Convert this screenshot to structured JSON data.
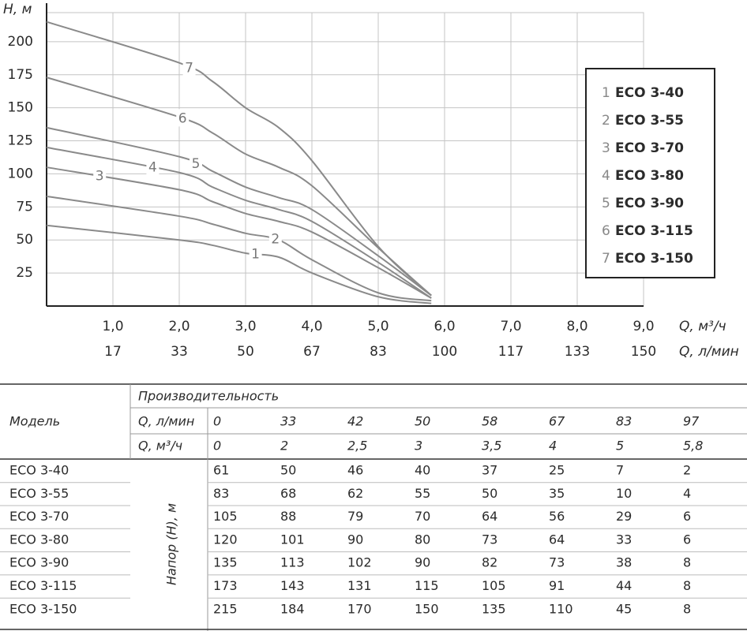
{
  "chart_data": {
    "type": "line",
    "y_label": "H, м",
    "x_label": "Q, м³/ч",
    "x2_label": "Q, л/мин",
    "xlim": [
      0,
      9
    ],
    "ylim": [
      0,
      222
    ],
    "xticks": [
      {
        "value": 1,
        "label": "1,0"
      },
      {
        "value": 2,
        "label": "2,0"
      },
      {
        "value": 3,
        "label": "3,0"
      },
      {
        "value": 4,
        "label": "4,0"
      },
      {
        "value": 5,
        "label": "5,0"
      },
      {
        "value": 6,
        "label": "6,0"
      },
      {
        "value": 7,
        "label": "7,0"
      },
      {
        "value": 8,
        "label": "8,0"
      },
      {
        "value": 9,
        "label": "9,0"
      }
    ],
    "x2ticks": [
      17,
      33,
      50,
      67,
      83,
      100,
      117,
      133,
      150
    ],
    "yticks": [
      25,
      50,
      75,
      100,
      125,
      150,
      175,
      200
    ],
    "grid": true,
    "legend": "right",
    "x": [
      0,
      2,
      2.5,
      3,
      3.5,
      4,
      5,
      5.8
    ],
    "series": [
      {
        "label": "1",
        "name": "ECO 3-40",
        "color": "#8a8a8a",
        "values": [
          61,
          50,
          46,
          40,
          37,
          25,
          7,
          2
        ]
      },
      {
        "label": "2",
        "name": "ECO 3-55",
        "color": "#8a8a8a",
        "values": [
          83,
          68,
          62,
          55,
          50,
          35,
          10,
          4
        ]
      },
      {
        "label": "3",
        "name": "ECO 3-70",
        "color": "#8a8a8a",
        "values": [
          105,
          88,
          79,
          70,
          64,
          56,
          29,
          6
        ]
      },
      {
        "label": "4",
        "name": "ECO 3-80",
        "color": "#8a8a8a",
        "values": [
          120,
          101,
          90,
          80,
          73,
          64,
          33,
          6
        ]
      },
      {
        "label": "5",
        "name": "ECO 3-90",
        "color": "#8a8a8a",
        "values": [
          135,
          113,
          102,
          90,
          82,
          73,
          38,
          8
        ]
      },
      {
        "label": "6",
        "name": "ECO 3-115",
        "color": "#8a8a8a",
        "values": [
          173,
          143,
          131,
          115,
          105,
          91,
          44,
          8
        ]
      },
      {
        "label": "7",
        "name": "ECO 3-150",
        "color": "#8a8a8a",
        "values": [
          215,
          184,
          170,
          150,
          135,
          110,
          45,
          8
        ]
      }
    ]
  },
  "table": {
    "model_header": "Модель",
    "group_header": "Производительность",
    "q_lmin_label": "Q, л/мин",
    "q_m3h_label": "Q, м³/ч",
    "head_label": "Напор (H), м",
    "q_lmin": [
      0,
      33,
      42,
      50,
      58,
      67,
      83,
      97
    ],
    "q_m3h": [
      "0",
      "2",
      "2,5",
      "3",
      "3,5",
      "4",
      "5",
      "5,8"
    ],
    "rows": [
      {
        "model": "ECO 3-40",
        "values": [
          61,
          50,
          46,
          40,
          37,
          25,
          7,
          2
        ]
      },
      {
        "model": "ECO 3-55",
        "values": [
          83,
          68,
          62,
          55,
          50,
          35,
          10,
          4
        ]
      },
      {
        "model": "ECO 3-70",
        "values": [
          105,
          88,
          79,
          70,
          64,
          56,
          29,
          6
        ]
      },
      {
        "model": "ECO 3-80",
        "values": [
          120,
          101,
          90,
          80,
          73,
          64,
          33,
          6
        ]
      },
      {
        "model": "ECO 3-90",
        "values": [
          135,
          113,
          102,
          90,
          82,
          73,
          38,
          8
        ]
      },
      {
        "model": "ECO 3-115",
        "values": [
          173,
          143,
          131,
          115,
          105,
          91,
          44,
          8
        ]
      },
      {
        "model": "ECO 3-150",
        "values": [
          215,
          184,
          170,
          150,
          135,
          110,
          45,
          8
        ]
      }
    ]
  }
}
